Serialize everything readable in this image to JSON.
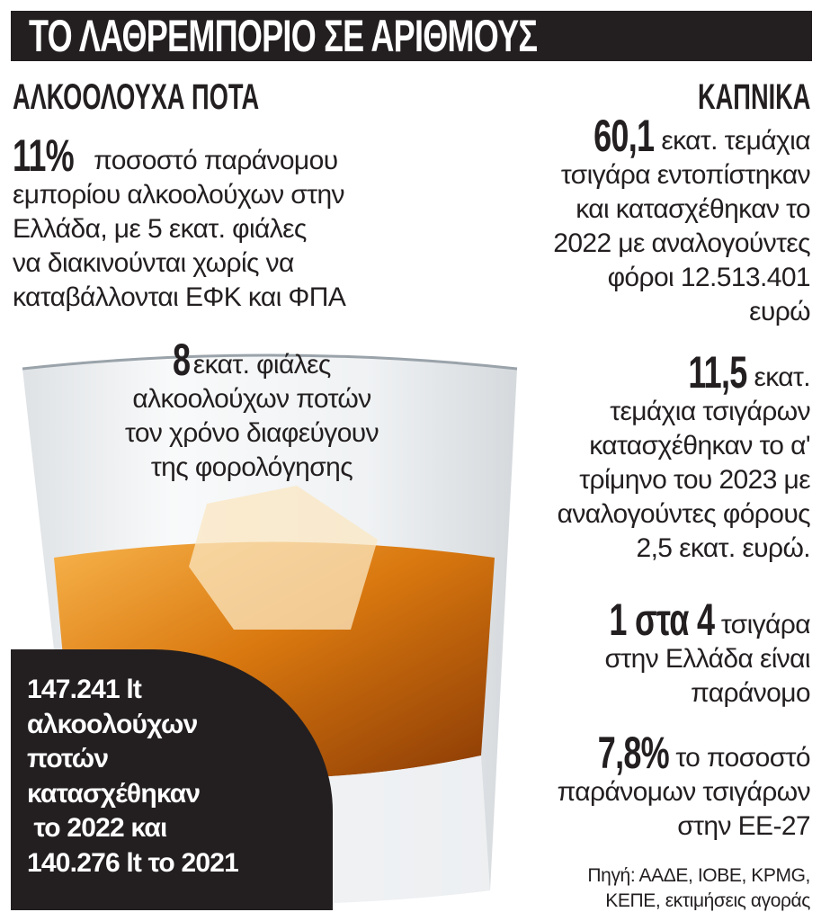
{
  "title": "ΤΟ ΛΑΘΡΕΜΠΟΡΙΟ ΣΕ ΑΡΙΘΜΟΥΣ",
  "alcohol": {
    "heading": "ΑΛΚΟΟΛΟΥΧΑ ΠΟΤΑ",
    "stat1": {
      "number": "11%",
      "lines": [
        "ποσοστό παράνομου",
        "εμπορίου αλκοολούχων στην",
        "Ελλάδα, με 5 εκατ. φιάλες",
        "να διακινούνται χωρίς να",
        "καταβάλλονται ΕΦΚ και ΦΠΑ"
      ]
    },
    "stat2": {
      "number": "8",
      "lines": [
        "εκατ. φιάλες",
        "αλκοολούχων ποτών",
        "τον χρόνο διαφεύγουν",
        "της φορολόγησης"
      ]
    },
    "box_lines": [
      "147.241 lt",
      "αλκοολούχων",
      "ποτών",
      "κατασχέθηκαν",
      " το 2022 και",
      "140.276 lt το 2021"
    ]
  },
  "tobacco": {
    "heading": "ΚΑΠΝΙΚΑ",
    "stat1": {
      "number": "60,1",
      "lines": [
        "εκατ. τεμάχια",
        "τσιγάρα εντοπίστηκαν",
        "και κατασχέθηκαν το",
        "2022 με αναλογούντες",
        "φόροι 12.513.401",
        "ευρώ"
      ]
    },
    "stat2": {
      "number": "11,5",
      "lines": [
        "εκατ.",
        "τεμάχια τσιγάρων",
        "κατασχέθηκαν το α'",
        "τρίμηνο του 2023 με",
        "αναλογούντες φόρους",
        "2,5 εκατ. ευρώ."
      ]
    },
    "stat3": {
      "number": "1 στα 4",
      "lines": [
        "τσιγάρα",
        "στην Ελλάδα είναι",
        "παράνομο"
      ]
    },
    "stat4": {
      "number": "7,8%",
      "lines": [
        "το ποσοστό",
        "παράνομων τσιγάρων",
        "στην ΕΕ-27"
      ]
    }
  },
  "source_lines": [
    "Πηγή: ΑΑΔΕ, ΙΟΒΕ, KPMG,",
    "ΚΕΠΕ, εκτιμήσεις αγοράς"
  ],
  "colors": {
    "dark": "#231f20",
    "whisky": "#d9780f"
  },
  "image": "whisky-glass-with-ice"
}
